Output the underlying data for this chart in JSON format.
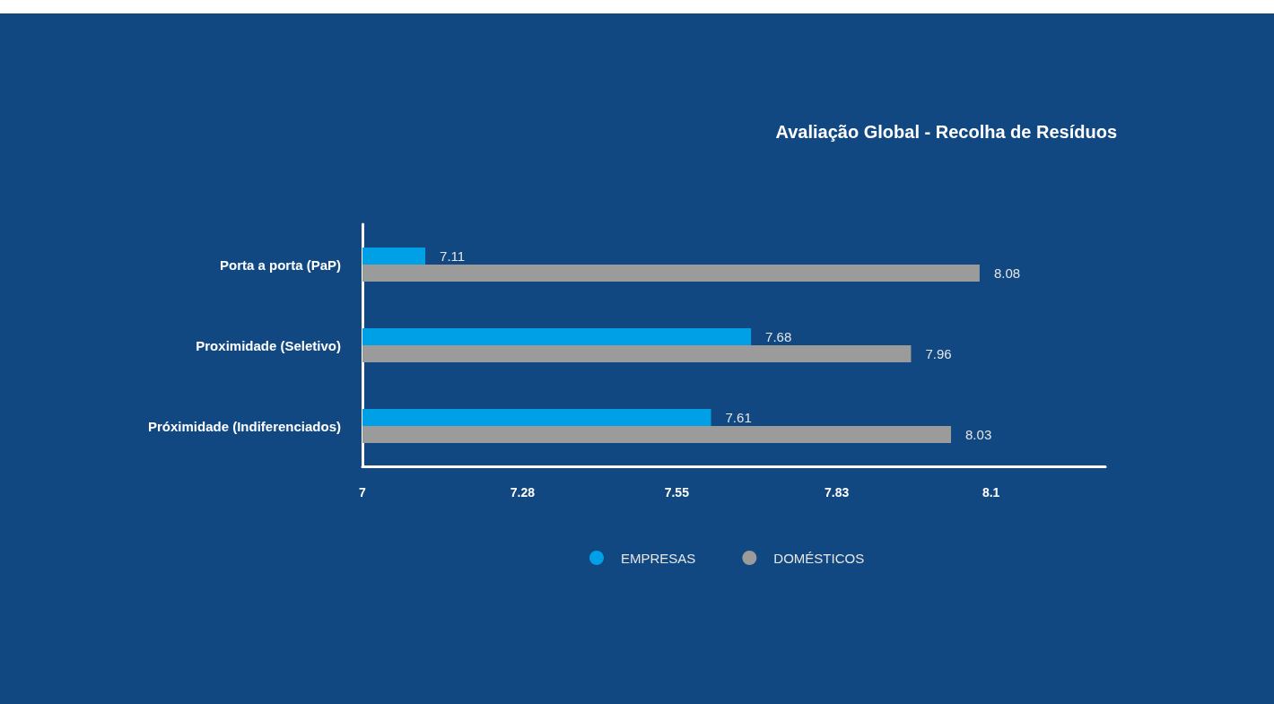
{
  "chart_data": {
    "type": "bar",
    "orientation": "horizontal",
    "title": "Avaliação Global - Recolha de Resíduos",
    "categories": [
      "Porta a porta (PaP)",
      "Proximidade (Seletivo)",
      "Próximidade (Indiferenciados)"
    ],
    "series": [
      {
        "name": "EMPRESAS",
        "color": "#00a0e6",
        "values": [
          7.11,
          7.68,
          7.61
        ]
      },
      {
        "name": "DOMÉSTICOS",
        "color": "#9b9b9b",
        "values": [
          8.08,
          7.96,
          8.03
        ]
      }
    ],
    "xlim": [
      7,
      8.3
    ],
    "xticks": [
      7,
      7.28,
      7.55,
      7.83,
      8.1
    ],
    "data_labels": true,
    "legend": "bottom"
  }
}
